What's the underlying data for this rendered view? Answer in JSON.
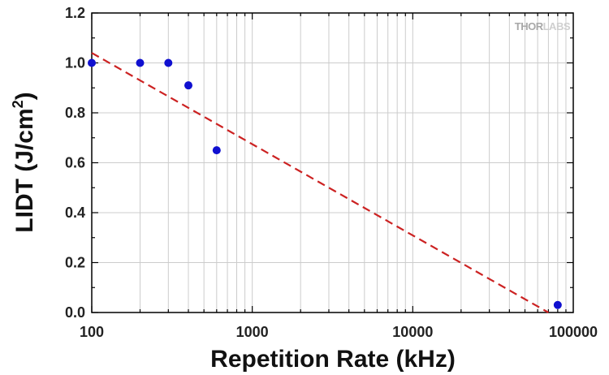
{
  "chart_data": {
    "type": "scatter",
    "title": "",
    "xlabel": "Repetition Rate (kHz)",
    "ylabel_main": "LIDT (J/cm",
    "ylabel_sup": "2",
    "ylabel_close": ")",
    "x_scale": "log",
    "xlim": [
      100,
      100000
    ],
    "ylim": [
      0.0,
      1.2
    ],
    "x_tick_labels": [
      "100",
      "1000",
      "10000",
      "100000"
    ],
    "y_tick_labels": [
      "0.0",
      "0.2",
      "0.4",
      "0.6",
      "0.8",
      "1.0",
      "1.2"
    ],
    "grid": true,
    "series": [
      {
        "kind": "points",
        "color": "#1010d0",
        "x": [
          100,
          200,
          300,
          400,
          600,
          80000
        ],
        "y": [
          1.0,
          1.0,
          1.0,
          0.91,
          0.65,
          0.03
        ]
      },
      {
        "kind": "fit-line",
        "style": "dashed",
        "color": "#cc2222",
        "x": [
          100,
          70000
        ],
        "y": [
          1.04,
          0.0
        ]
      }
    ]
  },
  "watermark": {
    "text_dark": "THOR",
    "text_light": "LABS"
  }
}
